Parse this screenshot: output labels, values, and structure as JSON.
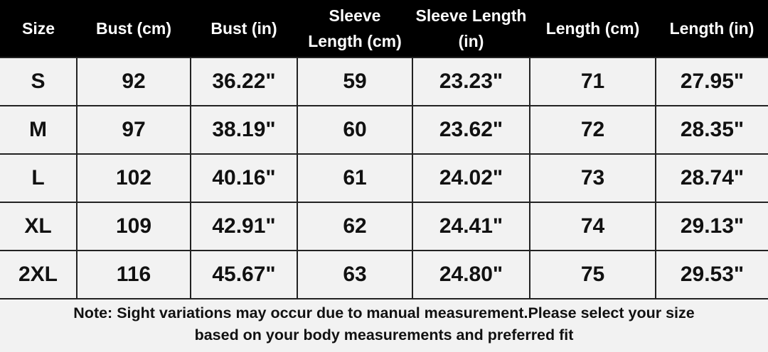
{
  "table": {
    "header": [
      "Size",
      "Bust (cm)",
      "Bust (in)",
      "Sleeve Length (cm)",
      "Sleeve Length (in)",
      "Length (cm)",
      "Length (in)"
    ],
    "rows": [
      [
        "S",
        "92",
        "36.22\"",
        "59",
        "23.23\"",
        "71",
        "27.95\""
      ],
      [
        "M",
        "97",
        "38.19\"",
        "60",
        "23.62\"",
        "72",
        "28.35\""
      ],
      [
        "L",
        "102",
        "40.16\"",
        "61",
        "24.02\"",
        "73",
        "28.74\""
      ],
      [
        "XL",
        "109",
        "42.91\"",
        "62",
        "24.41\"",
        "74",
        "29.13\""
      ],
      [
        "2XL",
        "116",
        "45.67\"",
        "63",
        "24.80\"",
        "75",
        "29.53\""
      ]
    ]
  },
  "note": {
    "lines": [
      "Note: Sight variations may occur due to manual measurement.Please select your size",
      "based on your body measurements and preferred fit"
    ]
  }
}
